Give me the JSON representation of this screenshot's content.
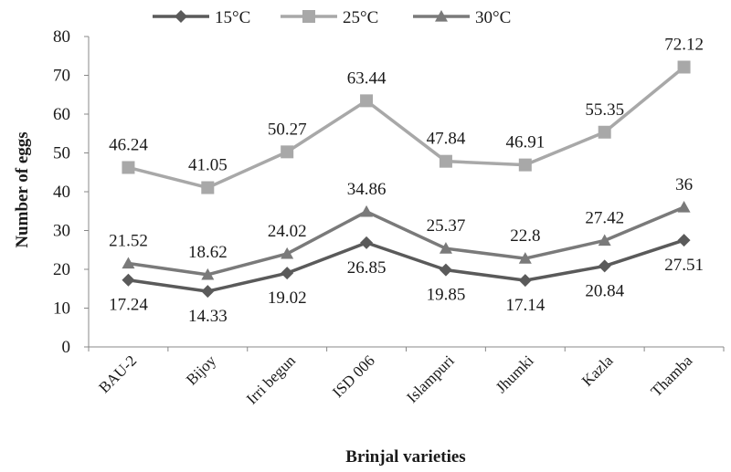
{
  "chart_data": {
    "type": "line",
    "title": "",
    "xlabel": "Brinjal varieties",
    "ylabel": "Number of eggs",
    "ylim": [
      0,
      80
    ],
    "yticks": [
      0,
      10,
      20,
      30,
      40,
      50,
      60,
      70,
      80
    ],
    "grid": false,
    "legend_position": "top",
    "categories": [
      "BAU-2",
      "Bijoy",
      "Irri begun",
      "ISD 006",
      "Islampuri",
      "Jhumki",
      "Kazla",
      "Thamba"
    ],
    "series": [
      {
        "name": "15°C",
        "marker": "diamond",
        "color": "#5a5a5a",
        "label_position": "below",
        "values": [
          17.24,
          14.33,
          19.02,
          26.85,
          19.85,
          17.14,
          20.84,
          27.51
        ]
      },
      {
        "name": "25°C",
        "marker": "square",
        "color": "#a8a8a8",
        "label_position": "above",
        "values": [
          46.24,
          41.05,
          50.27,
          63.44,
          47.84,
          46.91,
          55.35,
          72.12
        ]
      },
      {
        "name": "30°C",
        "marker": "triangle",
        "color": "#7a7a7a",
        "label_position": "above",
        "values": [
          21.52,
          18.62,
          24.02,
          34.86,
          25.37,
          22.8,
          27.42,
          36
        ]
      }
    ]
  }
}
